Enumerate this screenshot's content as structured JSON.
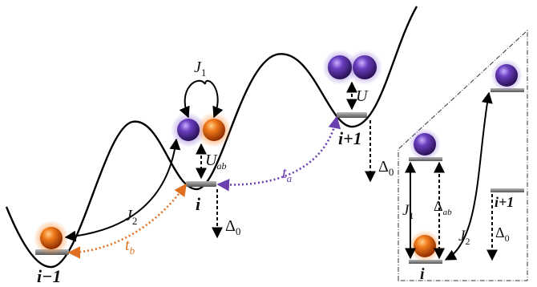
{
  "sites": {
    "left": "i−1",
    "center": "i",
    "right": "i+1"
  },
  "couplings": {
    "J1": "J",
    "J1_sub": "1",
    "J2": "J",
    "J2_sub": "2",
    "U": "U",
    "Uab": "U",
    "Uab_sub": "ab",
    "ta": "t",
    "ta_sub": "a",
    "tb": "t",
    "tb_sub": "b",
    "delta": "Δ",
    "delta_sub": "0"
  },
  "inset": {
    "site_bottom": "i",
    "site_right": "i+1",
    "J1": "J",
    "J1_sub": "1",
    "J2": "J",
    "J2_sub": "2",
    "delta_ab": "Δ",
    "delta_ab_sub": "ab",
    "delta0": "Δ",
    "delta0_sub": "0"
  },
  "colors": {
    "orange_particle": "#e8600c",
    "purple_particle": "#5a2ea8",
    "potential_curve": "#000000",
    "tunnel_a": "#6a3fb0",
    "tunnel_b": "#e07020",
    "level_bar": "#888888"
  }
}
